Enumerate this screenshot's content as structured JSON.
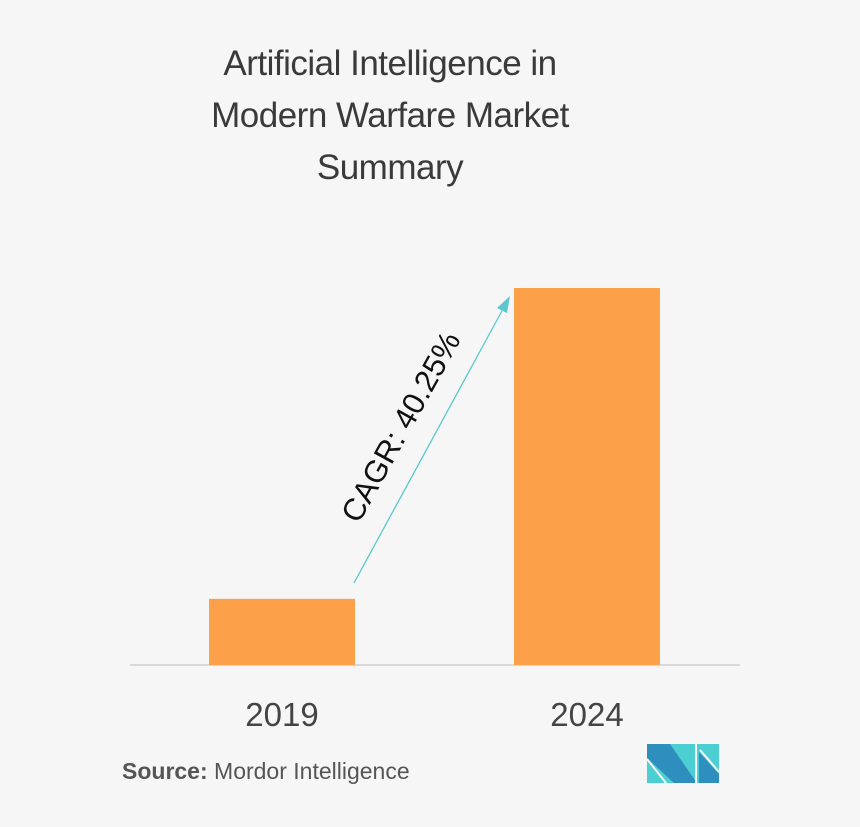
{
  "chart_data": {
    "type": "bar",
    "title": "Artificial Intelligence in Modern Warfare Market Summary",
    "title_lines": [
      "Artificial Intelligence in",
      "Modern Warfare Market",
      "Summary"
    ],
    "categories": [
      "2019",
      "2024"
    ],
    "values": [
      1.0,
      5.7
    ],
    "ylim": [
      0,
      5.7
    ],
    "xlabel": "",
    "ylabel": "",
    "grid": false,
    "bar_color": "#fca049",
    "annotation": {
      "text": "CAGR: 40.25%",
      "arrow_color": "#5ac8cd"
    }
  },
  "source": {
    "label": "Source:",
    "value": "Mordor Intelligence"
  },
  "colors": {
    "background": "#f6f6f6",
    "logo_dark": "#2e8fbf",
    "logo_light": "#4ccfd3"
  }
}
